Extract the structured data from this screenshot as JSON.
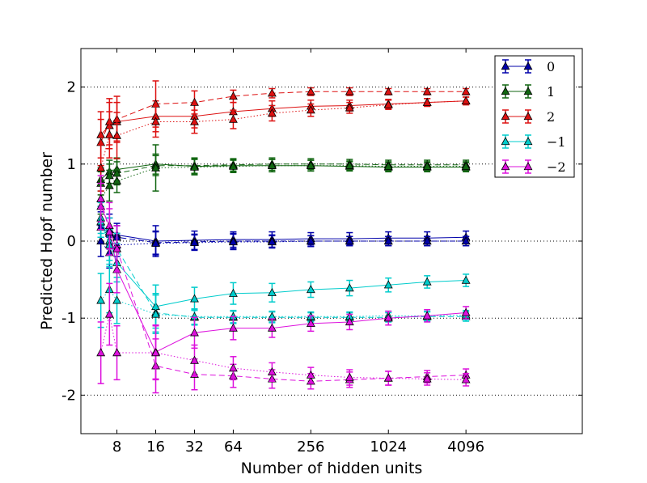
{
  "chart_data": {
    "type": "line",
    "title": "",
    "xlabel": "Number of hidden units",
    "ylabel": "Predicted Hopf number",
    "x_scale": "log2",
    "xlim": [
      4.2,
      32768
    ],
    "ylim": [
      -2.5,
      2.5
    ],
    "x_ticks": [
      8,
      16,
      32,
      64,
      256,
      1024,
      4096
    ],
    "x_tick_labels": [
      "8",
      "16",
      "32",
      "64",
      "256",
      "1024",
      "4096"
    ],
    "y_ticks": [
      2,
      1,
      0,
      -1,
      -2
    ],
    "y_tick_labels": [
      "2",
      "1",
      "0",
      "-1",
      "-2"
    ],
    "grid": "y-dotted",
    "legend_position": "top-right",
    "x": [
      6,
      7,
      8,
      16,
      32,
      64,
      128,
      256,
      512,
      1024,
      2048,
      4096
    ],
    "series": [
      {
        "name": "0",
        "color": "#0000aa",
        "runs": [
          {
            "style": "solid",
            "values": [
              0.18,
              0.15,
              0.08,
              0.0,
              0.01,
              0.02,
              0.02,
              0.03,
              0.03,
              0.04,
              0.04,
              0.05
            ],
            "errors": [
              0.2,
              0.2,
              0.15,
              0.2,
              0.12,
              0.1,
              0.1,
              0.08,
              0.08,
              0.08,
              0.08,
              0.08
            ]
          },
          {
            "style": "dashed",
            "values": [
              0.25,
              0.1,
              0.05,
              -0.02,
              -0.01,
              0.0,
              0.0,
              0.0,
              0.0,
              0.0,
              0.0,
              0.0
            ],
            "errors": [
              0.2,
              0.2,
              0.15,
              0.15,
              0.1,
              0.1,
              0.08,
              0.07,
              0.06,
              0.06,
              0.06,
              0.06
            ]
          },
          {
            "style": "dotted",
            "values": [
              0.0,
              -0.15,
              -0.05,
              -0.03,
              -0.02,
              -0.01,
              -0.01,
              0.0,
              0.0,
              0.0,
              0.0,
              0.0
            ],
            "errors": [
              0.2,
              0.2,
              0.15,
              0.15,
              0.1,
              0.1,
              0.08,
              0.07,
              0.06,
              0.06,
              0.06,
              0.06
            ]
          }
        ]
      },
      {
        "name": "1",
        "color": "#116611",
        "runs": [
          {
            "style": "solid",
            "values": [
              0.8,
              0.9,
              0.93,
              1.0,
              0.97,
              0.98,
              0.98,
              0.98,
              0.97,
              0.96,
              0.96,
              0.96
            ],
            "errors": [
              0.15,
              0.15,
              0.15,
              0.13,
              0.1,
              0.08,
              0.08,
              0.07,
              0.06,
              0.06,
              0.06,
              0.06
            ]
          },
          {
            "style": "dashed",
            "values": [
              0.75,
              0.85,
              0.88,
              0.98,
              0.98,
              0.99,
              1.0,
              1.0,
              1.0,
              0.99,
              0.99,
              0.99
            ],
            "errors": [
              0.15,
              0.15,
              0.15,
              0.13,
              0.1,
              0.08,
              0.08,
              0.07,
              0.06,
              0.06,
              0.06,
              0.06
            ]
          },
          {
            "style": "dotted",
            "values": [
              0.55,
              0.72,
              0.78,
              0.95,
              0.96,
              0.97,
              0.98,
              0.98,
              0.98,
              0.97,
              0.97,
              0.97
            ],
            "errors": [
              0.2,
              0.2,
              0.15,
              0.3,
              0.1,
              0.08,
              0.08,
              0.07,
              0.06,
              0.06,
              0.06,
              0.06
            ]
          }
        ]
      },
      {
        "name": "2",
        "color": "#dd1111",
        "runs": [
          {
            "style": "solid",
            "values": [
              1.38,
              1.5,
              1.55,
              1.62,
              1.62,
              1.68,
              1.72,
              1.75,
              1.76,
              1.78,
              1.8,
              1.82
            ],
            "errors": [
              0.3,
              0.3,
              0.25,
              0.2,
              0.15,
              0.12,
              0.1,
              0.08,
              0.07,
              0.06,
              0.05,
              0.05
            ]
          },
          {
            "style": "dashed",
            "values": [
              1.28,
              1.55,
              1.58,
              1.78,
              1.8,
              1.88,
              1.92,
              1.94,
              1.94,
              1.94,
              1.94,
              1.94
            ],
            "errors": [
              0.3,
              0.3,
              0.3,
              0.3,
              0.15,
              0.08,
              0.06,
              0.05,
              0.05,
              0.04,
              0.04,
              0.04
            ]
          },
          {
            "style": "dotted",
            "values": [
              0.95,
              1.38,
              1.37,
              1.55,
              1.55,
              1.58,
              1.66,
              1.7,
              1.73,
              1.77,
              1.8,
              1.82
            ],
            "errors": [
              0.3,
              0.3,
              0.3,
              0.2,
              0.15,
              0.12,
              0.1,
              0.08,
              0.07,
              0.06,
              0.05,
              0.05
            ]
          }
        ]
      },
      {
        "name": "−1",
        "color": "#00cccc",
        "runs": [
          {
            "style": "solid",
            "values": [
              0.3,
              -0.0,
              -0.28,
              -0.85,
              -0.75,
              -0.68,
              -0.67,
              -0.63,
              -0.61,
              -0.57,
              -0.53,
              -0.51
            ],
            "errors": [
              0.2,
              0.3,
              0.25,
              0.28,
              0.15,
              0.14,
              0.12,
              0.1,
              0.1,
              0.09,
              0.08,
              0.08
            ]
          },
          {
            "style": "dashed",
            "values": [
              0.25,
              -0.05,
              -0.1,
              -0.93,
              -0.99,
              -0.99,
              -0.99,
              -0.99,
              -0.99,
              -0.99,
              -0.98,
              -0.98
            ],
            "errors": [
              0.2,
              0.2,
              0.2,
              0.25,
              0.1,
              0.08,
              0.07,
              0.06,
              0.06,
              0.06,
              0.06,
              0.06
            ]
          },
          {
            "style": "dotted",
            "values": [
              -0.77,
              -0.63,
              -0.77,
              -0.95,
              -0.98,
              -0.98,
              -0.98,
              -0.98,
              -0.98,
              -0.97,
              -0.97,
              -0.96
            ],
            "errors": [
              0.35,
              0.3,
              0.3,
              0.25,
              0.1,
              0.08,
              0.07,
              0.06,
              0.06,
              0.06,
              0.06,
              0.06
            ]
          }
        ]
      },
      {
        "name": "−2",
        "color": "#dd11dd",
        "runs": [
          {
            "style": "solid",
            "values": [
              0.45,
              0.2,
              -0.37,
              -1.44,
              -1.19,
              -1.13,
              -1.13,
              -1.07,
              -1.05,
              -1.0,
              -0.97,
              -0.93
            ],
            "errors": [
              0.3,
              0.3,
              0.3,
              0.35,
              0.2,
              0.15,
              0.12,
              0.1,
              0.1,
              0.09,
              0.08,
              0.08
            ]
          },
          {
            "style": "dashed",
            "values": [
              0.55,
              0.12,
              -0.1,
              -1.62,
              -1.73,
              -1.75,
              -1.79,
              -1.82,
              -1.8,
              -1.78,
              -1.76,
              -1.74
            ],
            "errors": [
              0.3,
              0.3,
              0.3,
              0.35,
              0.2,
              0.15,
              0.12,
              0.1,
              0.1,
              0.09,
              0.08,
              0.08
            ]
          },
          {
            "style": "dotted",
            "values": [
              -1.45,
              -0.95,
              -1.45,
              -1.45,
              -1.55,
              -1.65,
              -1.7,
              -1.74,
              -1.77,
              -1.78,
              -1.79,
              -1.8
            ],
            "errors": [
              0.4,
              0.4,
              0.35,
              0.35,
              0.2,
              0.15,
              0.12,
              0.1,
              0.1,
              0.09,
              0.08,
              0.08
            ]
          }
        ]
      }
    ]
  }
}
